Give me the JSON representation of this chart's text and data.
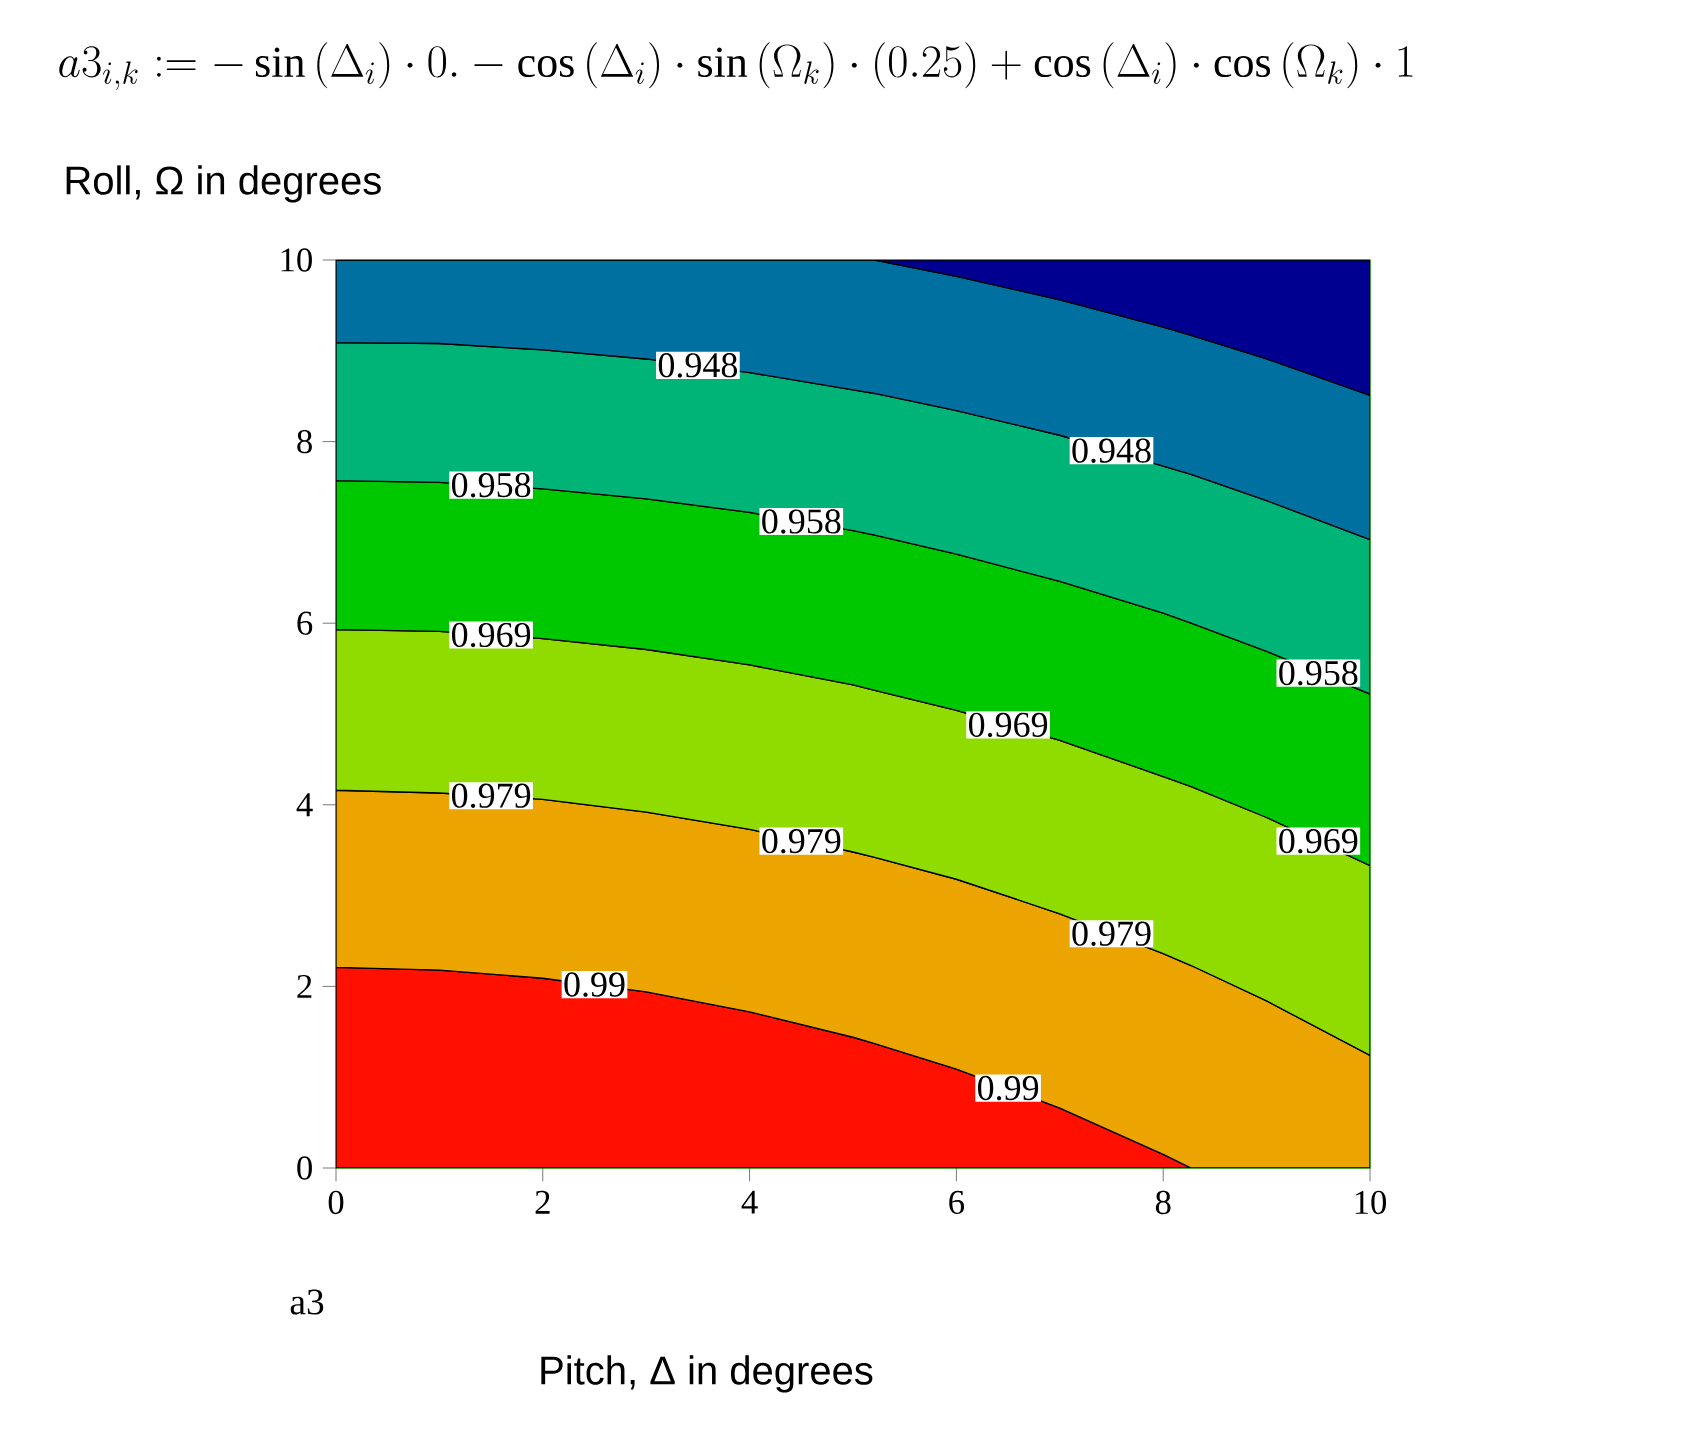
{
  "chart_data": {
    "type": "area",
    "stacked": true,
    "title": "a3_{i,k} := -\\sin\\left(\\Delta_{i}\\right)\\cdot 0. - \\cos\\left(\\Delta_{i}\\right)\\cdot\\sin\\left(\\Omega_{k}\\right)\\cdot(0.25) + \\cos\\left(\\Delta_{i}\\right)\\cdot\\cos\\left(\\Omega_{k}\\right)\\cdot 1",
    "xlabel": "Pitch, Δ in degrees",
    "ylabel": "Roll, Ω in degrees",
    "xlim": [
      0,
      10
    ],
    "ylim": [
      0,
      10
    ],
    "xticks": [
      0,
      2,
      4,
      6,
      8,
      10
    ],
    "yticks": [
      0,
      2,
      4,
      6,
      8,
      10
    ],
    "grid": true,
    "x": [
      0,
      1,
      2,
      3,
      4,
      5,
      5.21,
      6,
      7,
      8,
      8.27,
      9,
      10
    ],
    "series": [
      {
        "color": "#ff1000",
        "values": [
          2.21,
          2.18,
          2.09,
          1.94,
          1.72,
          1.44,
          1.37,
          1.09,
          0.66,
          0.15,
          0,
          0,
          0
        ]
      },
      {
        "color": "#eca400",
        "values": [
          1.95,
          1.95,
          1.97,
          1.98,
          2.01,
          2.04,
          2.05,
          2.09,
          2.14,
          2.21,
          2.23,
          1.84,
          1.24
        ]
      },
      {
        "color": "#90dc00",
        "values": [
          1.77,
          1.78,
          1.77,
          1.79,
          1.81,
          1.84,
          1.84,
          1.86,
          1.91,
          1.95,
          1.97,
          2.02,
          2.09
        ]
      },
      {
        "color": "#00c800",
        "values": [
          1.64,
          1.64,
          1.65,
          1.66,
          1.68,
          1.7,
          1.71,
          1.72,
          1.75,
          1.8,
          1.8,
          1.83,
          1.89
        ]
      },
      {
        "color": "#00b478",
        "values": [
          1.52,
          1.53,
          1.53,
          1.54,
          1.54,
          1.55,
          1.56,
          1.58,
          1.61,
          1.62,
          1.64,
          1.66,
          1.7
        ]
      },
      {
        "color": "#0070a0",
        "values": [
          0.91,
          0.92,
          0.99,
          1.09,
          1.24,
          1.43,
          1.47,
          1.48,
          1.49,
          1.53,
          1.53,
          1.56,
          1.59
        ]
      },
      {
        "color": "#000090",
        "values": [
          0,
          0,
          0,
          0,
          0,
          0,
          0,
          0.18,
          0.44,
          0.74,
          0.83,
          1.09,
          1.49
        ]
      }
    ],
    "annotations": [
      {
        "text": "0.948",
        "x": 3.5,
        "y": 8.84
      },
      {
        "text": "0.948",
        "x": 7.5,
        "y": 7.9
      },
      {
        "text": "0.958",
        "x": 1.5,
        "y": 7.52
      },
      {
        "text": "0.958",
        "x": 4.5,
        "y": 7.12
      },
      {
        "text": "0.958",
        "x": 9.5,
        "y": 5.45
      },
      {
        "text": "0.969",
        "x": 1.5,
        "y": 5.87
      },
      {
        "text": "0.969",
        "x": 6.5,
        "y": 4.88
      },
      {
        "text": "0.969",
        "x": 9.5,
        "y": 3.6
      },
      {
        "text": "0.979",
        "x": 1.5,
        "y": 4.1
      },
      {
        "text": "0.979",
        "x": 4.5,
        "y": 3.6
      },
      {
        "text": "0.979",
        "x": 7.5,
        "y": 2.58
      },
      {
        "text": "0.99",
        "x": 2.5,
        "y": 2.02
      },
      {
        "text": "0.99",
        "x": 6.5,
        "y": 0.88
      },
      "a3"
    ]
  }
}
